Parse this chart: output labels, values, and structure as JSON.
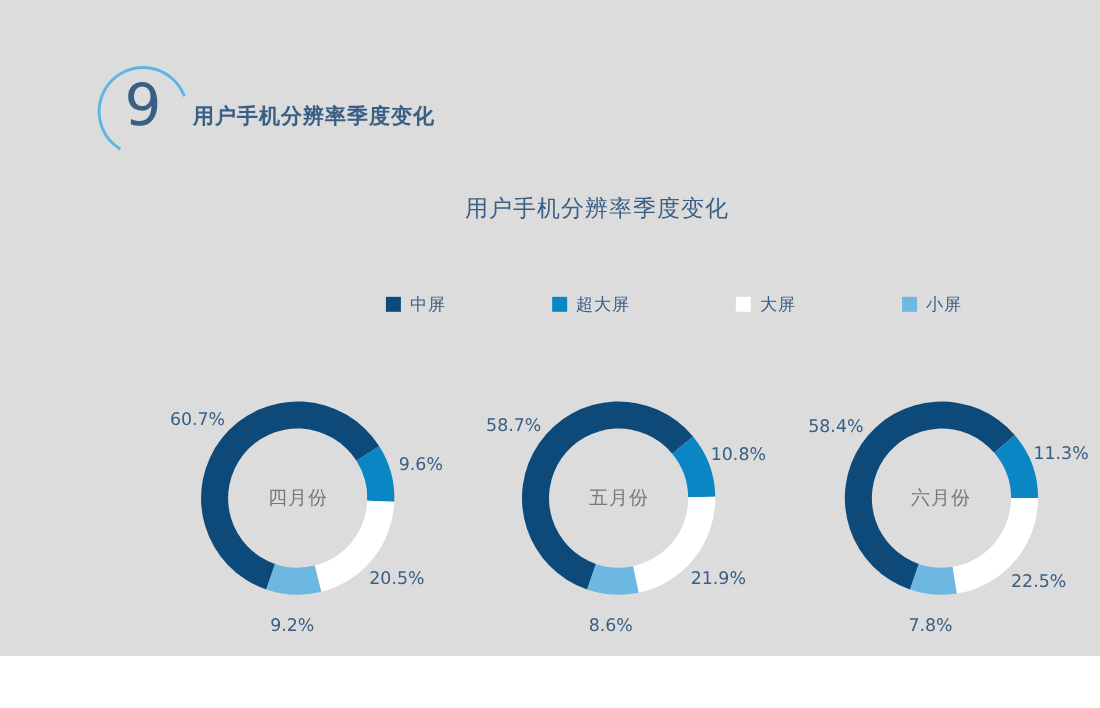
{
  "chart_data": {
    "type": "donut",
    "annotations": [
      "9",
      "用户手机分辨率季度变化",
      "用户手机分辨率季度变化"
    ],
    "legend": "top",
    "categories": [
      "中屏",
      "超大屏",
      "大屏",
      "小屏"
    ],
    "colors": [
      "#0d4a7a",
      "#0a86c4",
      "#ffffff",
      "#6cb8e0"
    ],
    "series": [
      {
        "name": "四月份",
        "values": [
          60.7,
          9.6,
          20.5,
          9.2
        ],
        "value_labels": [
          "60.7%",
          "9.6%",
          "20.5%",
          "9.2%"
        ]
      },
      {
        "name": "五月份",
        "values": [
          58.7,
          10.8,
          21.9,
          8.6
        ],
        "value_labels": [
          "58.7%",
          "10.8%",
          "21.9%",
          "8.6%"
        ]
      },
      {
        "name": "六月份",
        "values": [
          58.4,
          11.3,
          22.5,
          7.8
        ],
        "value_labels": [
          "58.4%",
          "11.3%",
          "22.5%",
          "7.8%"
        ]
      }
    ]
  }
}
